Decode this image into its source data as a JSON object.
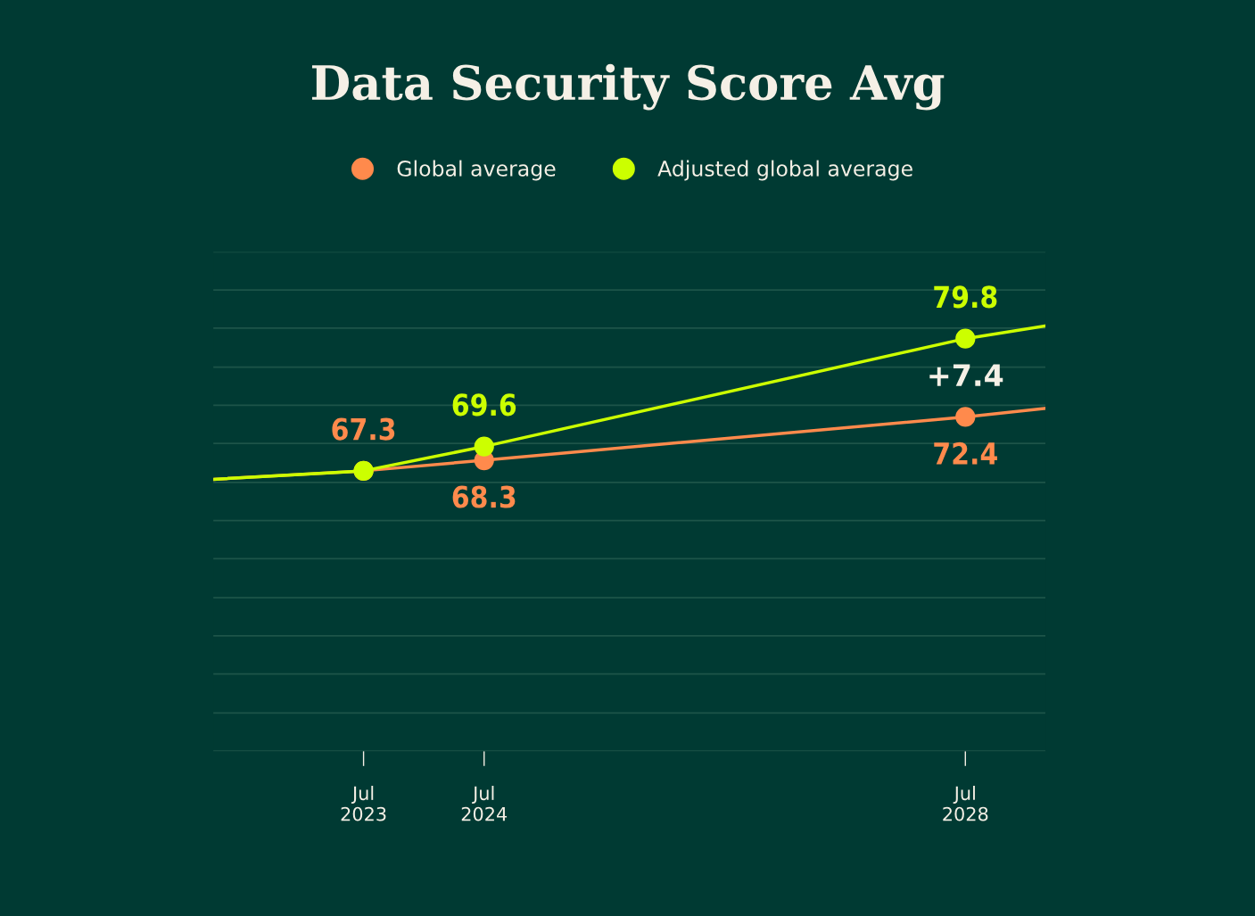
{
  "chart_data": {
    "type": "line",
    "title": "Data Security Score Avg",
    "legend": "top",
    "marker": "circle",
    "line_style": "solid",
    "grid": "y",
    "tick_labels": "x",
    "xlim": [
      "2022-04",
      "2029-03"
    ],
    "ylim": [
      40.8,
      88.0
    ],
    "xticks": [
      {
        "value": "2023-07",
        "label": "Jul\n2023"
      },
      {
        "value": "2024-07",
        "label": "Jul\n2024"
      },
      {
        "value": "2028-07",
        "label": "Jul\n2028"
      }
    ],
    "yticks": [
      {
        "value": 40.8,
        "label": null
      },
      {
        "value": 44.4,
        "label": null
      },
      {
        "value": 48.1,
        "label": null
      },
      {
        "value": 51.7,
        "label": null
      },
      {
        "value": 55.3,
        "label": null
      },
      {
        "value": 59.0,
        "label": null
      },
      {
        "value": 62.6,
        "label": null
      },
      {
        "value": 66.2,
        "label": null
      },
      {
        "value": 69.9,
        "label": null
      },
      {
        "value": 73.5,
        "label": null
      },
      {
        "value": 77.1,
        "label": null
      },
      {
        "value": 80.8,
        "label": null
      },
      {
        "value": 84.4,
        "label": null
      },
      {
        "value": 88.0,
        "label": null
      }
    ],
    "x": [
      "2022-04",
      "2023-07",
      "2024-07",
      "2028-07",
      "2029-03"
    ],
    "series": [
      {
        "name": "Global average",
        "color": "#ff8a4c",
        "values": [
          66.5,
          67.3,
          68.3,
          72.4,
          73.2
        ],
        "value_labels": [
          null,
          "67.3",
          "68.3",
          "72.4",
          null
        ]
      },
      {
        "name": "Adjusted global average",
        "color": "#ccff00",
        "values": [
          66.5,
          67.3,
          69.6,
          79.8,
          81.0
        ],
        "value_labels": [
          null,
          null,
          "69.6",
          "79.8",
          null
        ]
      }
    ],
    "annotations": [
      "+7.4"
    ]
  }
}
